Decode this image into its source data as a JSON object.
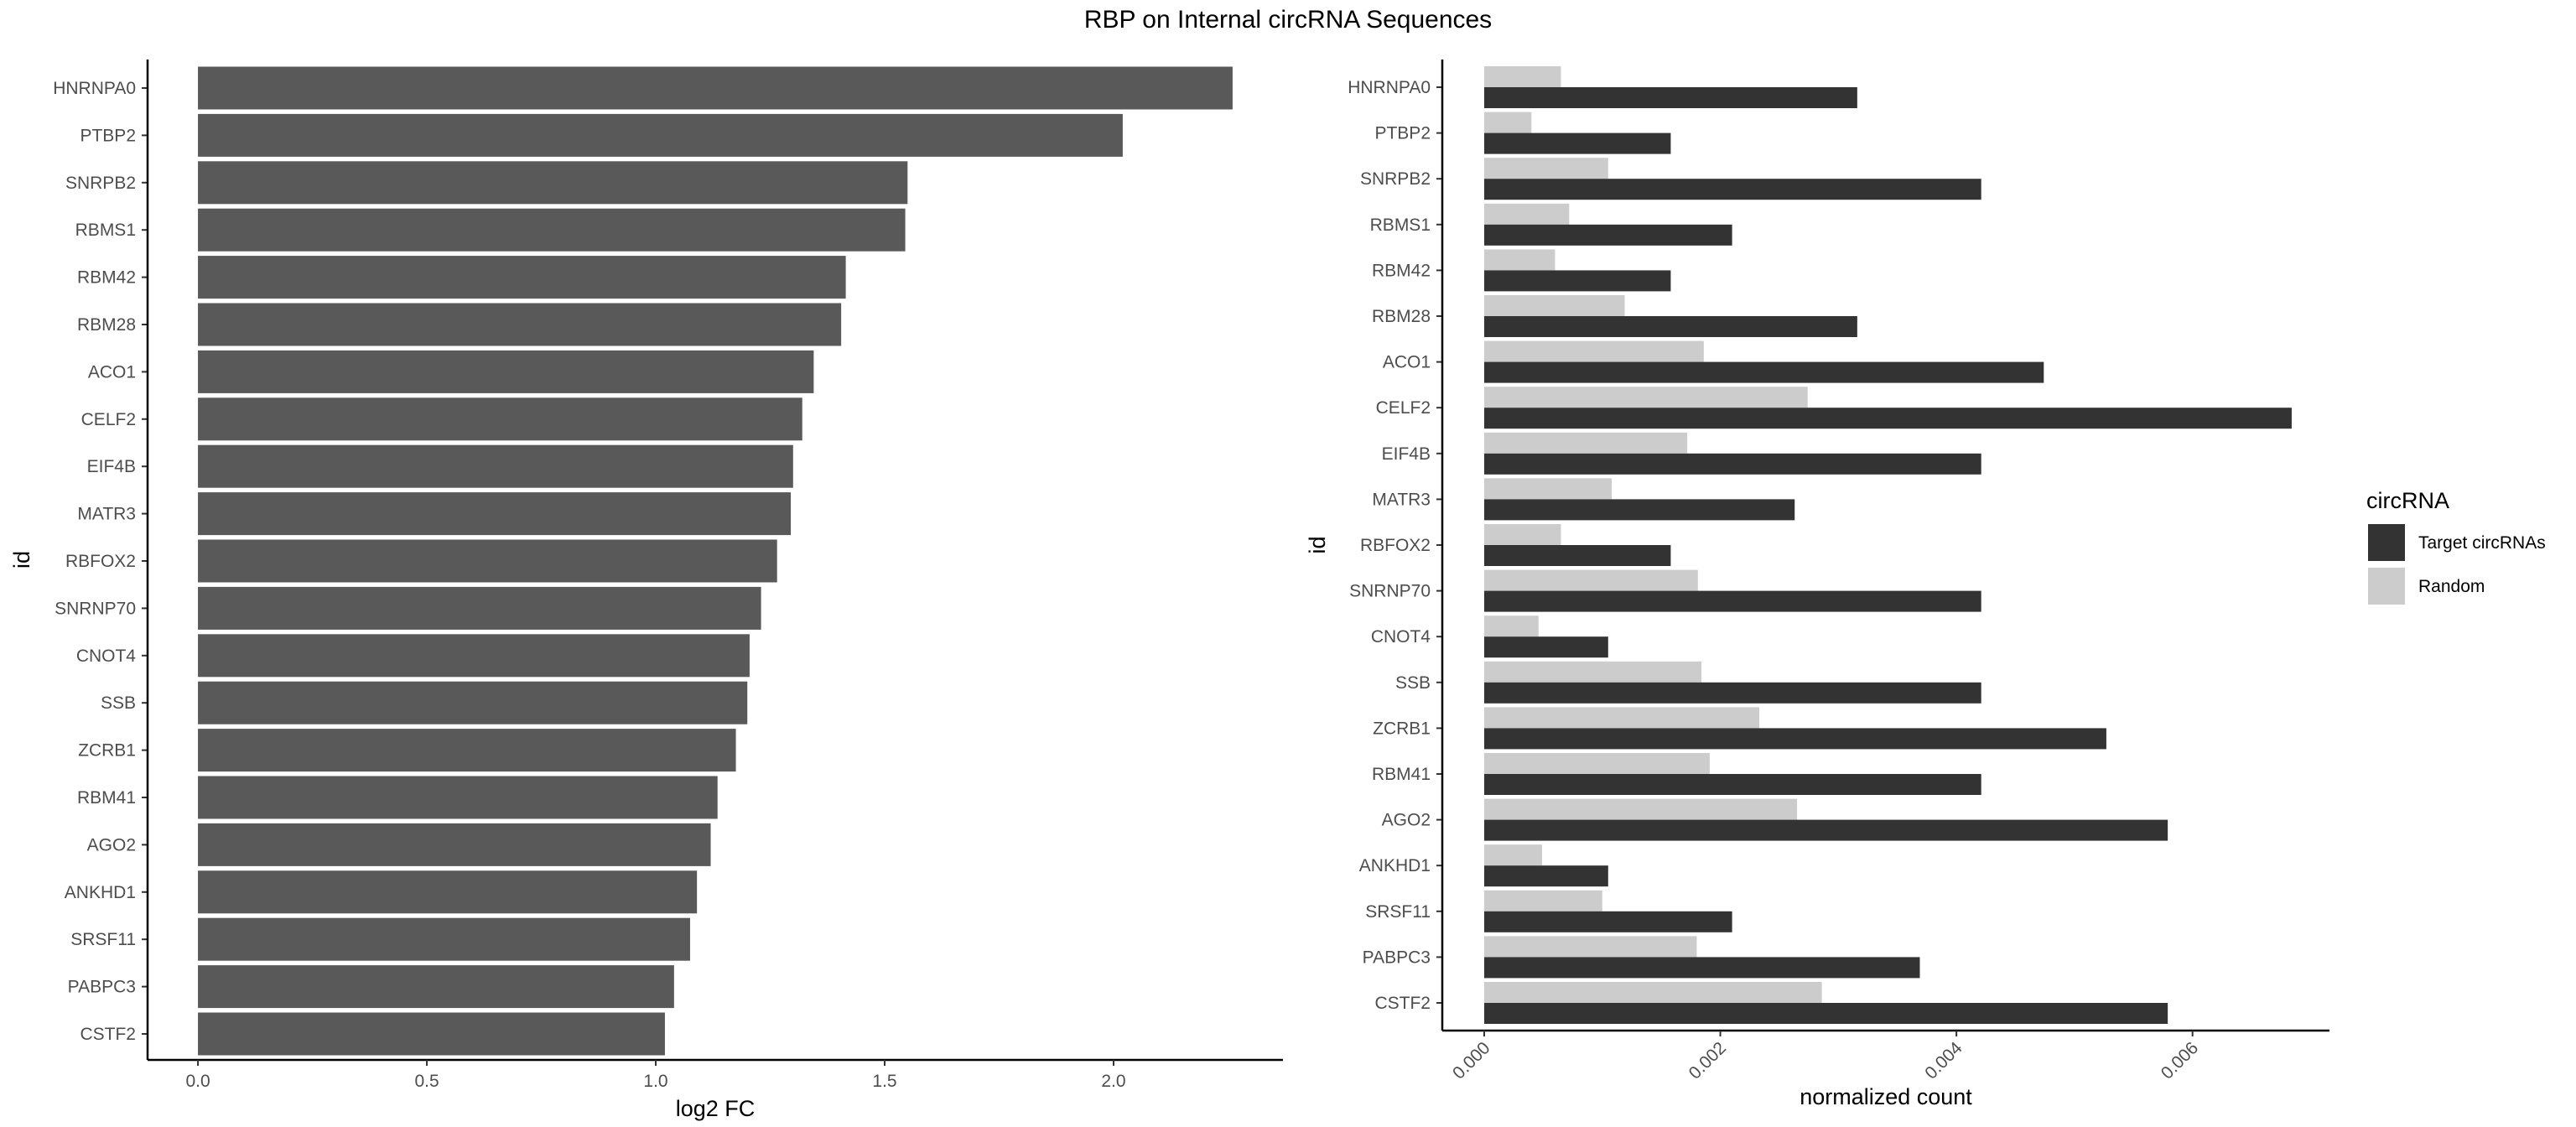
{
  "figure": {
    "title": "RBP on Internal circRNA Sequences"
  },
  "chart_data": [
    {
      "type": "bar",
      "orientation": "horizontal",
      "categories": [
        "HNRNPA0",
        "PTBP2",
        "SNRPB2",
        "RBMS1",
        "RBM42",
        "RBM28",
        "ACO1",
        "CELF2",
        "EIF4B",
        "MATR3",
        "RBFOX2",
        "SNRNP70",
        "CNOT4",
        "SSB",
        "ZCRB1",
        "RBM41",
        "AGO2",
        "ANKHD1",
        "SRSF11",
        "PABPC3",
        "CSTF2"
      ],
      "values": [
        2.26,
        2.02,
        1.55,
        1.545,
        1.415,
        1.405,
        1.345,
        1.32,
        1.3,
        1.295,
        1.265,
        1.23,
        1.205,
        1.2,
        1.175,
        1.135,
        1.12,
        1.09,
        1.075,
        1.04,
        1.02
      ],
      "xlabel": "log2 FC",
      "ylabel": "id",
      "xlim": [
        -0.11,
        2.37
      ],
      "xticks": [
        0.0,
        0.5,
        1.0,
        1.5,
        2.0
      ],
      "xtick_labels": [
        "0.0",
        "0.5",
        "1.0",
        "1.5",
        "2.0"
      ],
      "bar_color": "#595959",
      "grid": false
    },
    {
      "type": "bar",
      "orientation": "horizontal",
      "position": "dodge",
      "categories": [
        "HNRNPA0",
        "PTBP2",
        "SNRPB2",
        "RBMS1",
        "RBM42",
        "RBM28",
        "ACO1",
        "CELF2",
        "EIF4B",
        "MATR3",
        "RBFOX2",
        "SNRNP70",
        "CNOT4",
        "SSB",
        "ZCRB1",
        "RBM41",
        "AGO2",
        "ANKHD1",
        "SRSF11",
        "PABPC3",
        "CSTF2"
      ],
      "series": [
        {
          "name": "Target circRNAs",
          "color": "#333333",
          "values": [
            0.00316,
            0.00158,
            0.00421,
            0.0021,
            0.00158,
            0.00316,
            0.00474,
            0.00684,
            0.00421,
            0.00263,
            0.00158,
            0.00421,
            0.00105,
            0.00421,
            0.00527,
            0.00421,
            0.00579,
            0.00105,
            0.0021,
            0.00369,
            0.00579
          ]
        },
        {
          "name": "Random",
          "color": "#cccccc",
          "values": [
            0.00065,
            0.0004,
            0.00105,
            0.00072,
            0.0006,
            0.00119,
            0.00186,
            0.00274,
            0.00172,
            0.00108,
            0.00065,
            0.00181,
            0.00046,
            0.00184,
            0.00233,
            0.00191,
            0.00265,
            0.00049,
            0.001,
            0.0018,
            0.00286
          ]
        }
      ],
      "legend_title": "circRNA",
      "legend_position": "right",
      "xlabel": "normalized count",
      "ylabel": "id",
      "xlim": [
        -0.000355,
        0.00716
      ],
      "xticks": [
        0.0,
        0.002,
        0.004,
        0.006
      ],
      "xtick_labels": [
        "0.000",
        "0.002",
        "0.004",
        "0.006"
      ],
      "grid": false
    }
  ]
}
